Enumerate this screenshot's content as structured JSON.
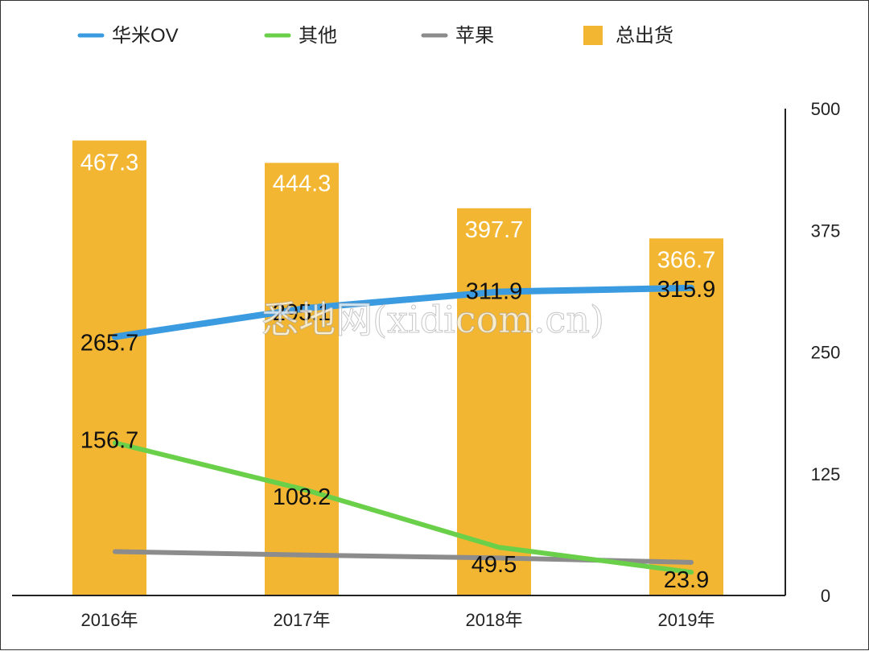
{
  "chart_data": {
    "type": "bar",
    "categories": [
      "2016年",
      "2017年",
      "2018年",
      "2019年"
    ],
    "bar_series": {
      "name": "总出货",
      "values": [
        467.3,
        444.3,
        397.7,
        366.7
      ],
      "labels": [
        "467.3",
        "444.3",
        "397.7",
        "366.7"
      ],
      "color": "#F2B632"
    },
    "line_series": [
      {
        "name": "华米OV",
        "values": [
          265.7,
          295.1,
          311.9,
          315.9
        ],
        "labels": [
          "265.7",
          "295.1",
          "311.9",
          "315.9"
        ],
        "color": "#3A9BE0"
      },
      {
        "name": "其他",
        "values": [
          156.7,
          108.2,
          49.5,
          23.9
        ],
        "labels": [
          "156.7",
          "108.2",
          "49.5",
          "23.9"
        ],
        "color": "#6AD04A"
      },
      {
        "name": "苹果",
        "values": [
          45,
          41.5,
          38.5,
          34
        ],
        "color": "#8C8C8C"
      }
    ],
    "y_axis": {
      "position": "right",
      "ylim": [
        0,
        500
      ],
      "ticks": [
        0,
        125,
        250,
        375,
        500
      ],
      "tick_labels": [
        "0",
        "125",
        "250",
        "375",
        "500"
      ]
    },
    "legend": {
      "placement": "top",
      "entries": [
        {
          "name": "华米OV",
          "marker": "line",
          "color": "#3A9BE0"
        },
        {
          "name": "其他",
          "marker": "line",
          "color": "#6AD04A"
        },
        {
          "name": "苹果",
          "marker": "line",
          "color": "#8C8C8C"
        },
        {
          "name": "总出货",
          "marker": "square",
          "color": "#F2B632"
        }
      ]
    },
    "grid": false
  },
  "watermark": "悉地网(xidicom.cn)"
}
